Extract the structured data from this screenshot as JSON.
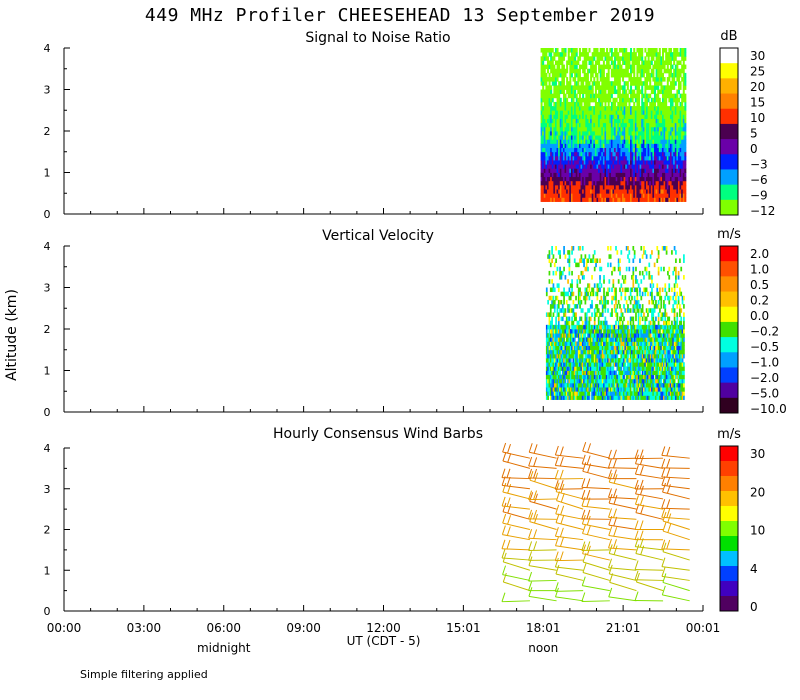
{
  "title": "449 MHz Profiler CHEESEHEAD 13 September 2019",
  "y_axis_label": "Altitude (km)",
  "footnote": "Simple filtering applied",
  "x_axis": {
    "label": "UT  (CDT - 5)",
    "range_hours": [
      0,
      24
    ],
    "ticks": [
      {
        "hour": 0,
        "label": "00:00"
      },
      {
        "hour": 3,
        "label": "03:00"
      },
      {
        "hour": 6,
        "label": "06:00"
      },
      {
        "hour": 9,
        "label": "09:00"
      },
      {
        "hour": 12,
        "label": "12:00"
      },
      {
        "hour": 15,
        "label": "15:01"
      },
      {
        "hour": 18,
        "label": "18:01"
      },
      {
        "hour": 21,
        "label": "21:01"
      },
      {
        "hour": 24,
        "label": "00:01"
      }
    ],
    "annotations": [
      {
        "hour": 6,
        "label": "midnight"
      },
      {
        "hour": 18,
        "label": "noon"
      }
    ]
  },
  "chart_data": [
    {
      "type": "heatmap",
      "title": "Signal to Noise Ratio",
      "ylabel": "Altitude (km)",
      "ylim": [
        0,
        4
      ],
      "yticks": [
        "0",
        "1",
        "2",
        "3",
        "4"
      ],
      "data_time_range_hours": [
        17.9,
        23.3
      ],
      "data_alt_range_km": [
        0.3,
        4.0
      ],
      "colorbar": {
        "unit": "dB",
        "labels": [
          "30",
          "25",
          "20",
          "15",
          "10",
          "5",
          "0",
          "−3",
          "−6",
          "−9",
          "−12"
        ],
        "colors": [
          "#ffffff",
          "#ffff00",
          "#ffb000",
          "#ff8000",
          "#ff3000",
          "#4b0050",
          "#6a00a8",
          "#0020ff",
          "#00a0ff",
          "#00ff80",
          "#80ff00"
        ]
      },
      "profile_by_altitude_km": [
        {
          "alt": 0.3,
          "dB": 13
        },
        {
          "alt": 0.6,
          "dB": 10
        },
        {
          "alt": 1.0,
          "dB": 2
        },
        {
          "alt": 1.4,
          "dB": -3
        },
        {
          "alt": 1.8,
          "dB": -8
        },
        {
          "alt": 2.4,
          "dB": -11
        },
        {
          "alt": 3.2,
          "dB": -12
        },
        {
          "alt": 4.0,
          "dB": -12
        }
      ]
    },
    {
      "type": "heatmap",
      "title": "Vertical Velocity",
      "ylabel": "Altitude (km)",
      "ylim": [
        0,
        4
      ],
      "yticks": [
        "0",
        "1",
        "2",
        "3",
        "4"
      ],
      "data_time_range_hours": [
        18.1,
        23.3
      ],
      "data_alt_range_km": [
        0.3,
        4.0
      ],
      "colorbar": {
        "unit": "m/s",
        "labels": [
          "2.0",
          "1.0",
          "0.5",
          "0.2",
          "0.0",
          "−0.2",
          "−0.5",
          "−1.0",
          "−2.0",
          "−5.0",
          "−10.0"
        ],
        "colors": [
          "#ff0000",
          "#ff5000",
          "#ff9000",
          "#ffc000",
          "#ffff00",
          "#40e000",
          "#00ffe0",
          "#00a0ff",
          "#0040ff",
          "#5000a0",
          "#300020"
        ]
      }
    },
    {
      "type": "wind_barbs",
      "title": "Hourly Consensus Wind Barbs",
      "ylabel": "Altitude (km)",
      "ylim": [
        0,
        4
      ],
      "yticks": [
        "0",
        "1",
        "2",
        "3",
        "4"
      ],
      "times_hours": [
        17.5,
        18.5,
        19.5,
        20.5,
        21.5,
        22.5,
        23.5
      ],
      "altitudes_km": [
        0.25,
        0.5,
        0.75,
        1.0,
        1.25,
        1.5,
        1.75,
        2.0,
        2.25,
        2.5,
        2.75,
        3.0,
        3.25,
        3.5,
        3.75
      ],
      "colorbar": {
        "unit": "m/s",
        "labels": [
          "30",
          "20",
          "10",
          "4",
          "0"
        ],
        "colors": [
          "#ff0000",
          "#ff4000",
          "#ff8000",
          "#ffc000",
          "#ffff00",
          "#80ff00",
          "#00e000",
          "#00c0ff",
          "#0040ff",
          "#4000c0",
          "#500060"
        ]
      },
      "speed_profile_by_altitude_km": [
        {
          "alt": 0.25,
          "speed": 10
        },
        {
          "alt": 1.0,
          "speed": 14
        },
        {
          "alt": 1.75,
          "speed": 18
        },
        {
          "alt": 2.5,
          "speed": 20
        },
        {
          "alt": 3.75,
          "speed": 22
        }
      ]
    }
  ]
}
